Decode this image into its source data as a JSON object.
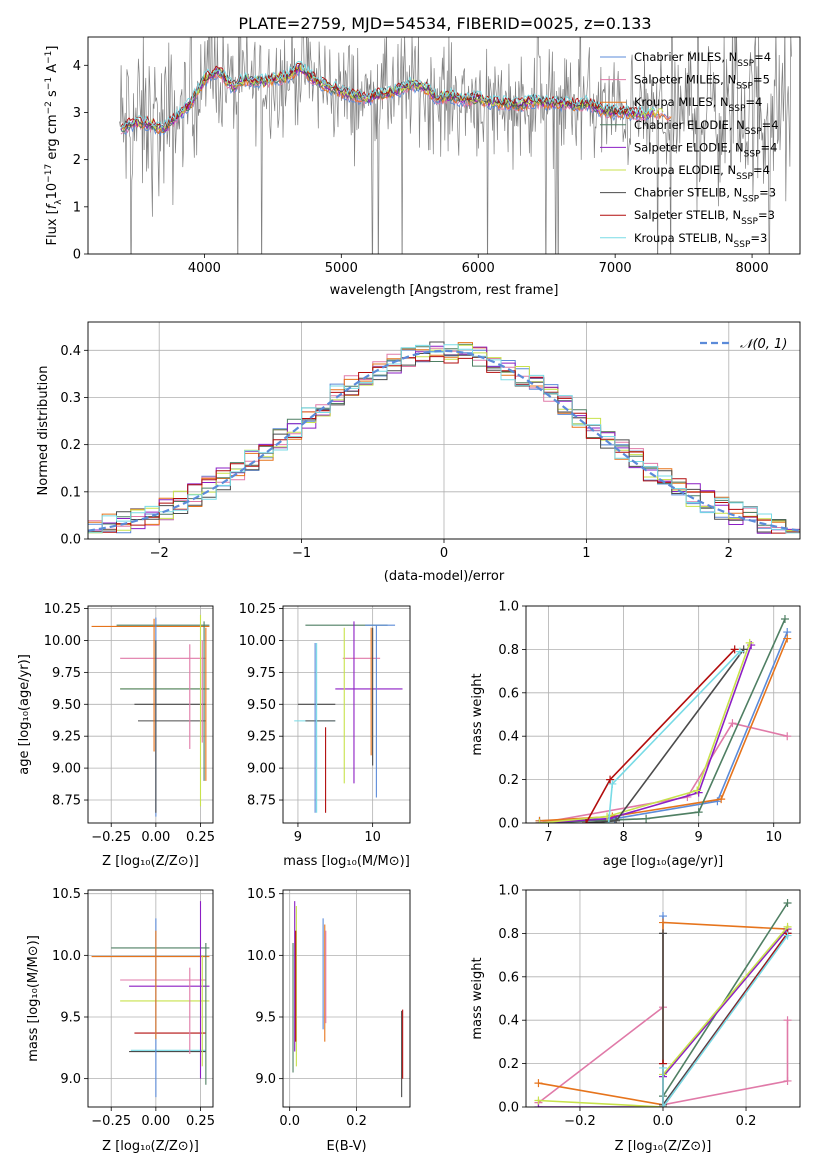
{
  "figure": {
    "title": "PLATE=2759, MJD=54534, FIBERID=0025, z=0.133"
  },
  "colors": {
    "Chabrier MILES": "#5b8bd9",
    "Salpeter MILES": "#e07aa8",
    "Kroupa MILES": "#e6741c",
    "Chabrier ELODIE": "#4f7f63",
    "Salpeter ELODIE": "#8c1fc4",
    "Kroupa ELODIE": "#c8e24c",
    "Chabrier STELIB": "#4b4b4b",
    "Salpeter STELIB": "#b20d0d",
    "Kroupa STELIB": "#78dbe6",
    "observed": "#808080"
  },
  "legend": [
    "Chabrier MILES, N_SSP=4",
    "Salpeter MILES, N_SSP=5",
    "Kroupa MILES, N_SSP=4",
    "Chabrier ELODIE, N_SSP=4",
    "Salpeter ELODIE, N_SSP=4",
    "Kroupa ELODIE, N_SSP=4",
    "Chabrier STELIB, N_SSP=3",
    "Salpeter STELIB, N_SSP=3",
    "Kroupa STELIB, N_SSP=3"
  ],
  "chart_data": [
    {
      "type": "line",
      "id": "spectrum",
      "xlabel": "wavelength [Angstrom, rest frame]",
      "ylabel": "Flux [f_λ 10^-17 erg cm^-2 s^-1 A^-1]",
      "xlim": [
        3150,
        8350
      ],
      "ylim": [
        0,
        4.6
      ],
      "xticks": [
        4000,
        5000,
        6000,
        7000,
        8000
      ],
      "yticks": [
        0,
        1,
        2,
        3,
        4
      ],
      "continuum": {
        "x": [
          3380,
          3500,
          3600,
          3700,
          3800,
          3900,
          4000,
          4100,
          4200,
          4300,
          4400,
          4500,
          4600,
          4700,
          4800,
          4900,
          5000,
          5100,
          5200,
          5300,
          5400,
          5500,
          5600,
          5700,
          5800,
          5900,
          6000,
          6100,
          6200,
          6300,
          6400,
          6500,
          6600,
          6700,
          6800,
          6900,
          7000,
          7100,
          7200,
          7300,
          7400
        ],
        "y": [
          2.65,
          2.8,
          2.75,
          2.65,
          2.9,
          3.2,
          3.7,
          3.9,
          3.55,
          3.7,
          3.65,
          3.7,
          3.75,
          3.95,
          3.7,
          3.55,
          3.45,
          3.35,
          3.3,
          3.4,
          3.45,
          3.6,
          3.55,
          3.3,
          3.35,
          3.25,
          3.3,
          3.2,
          3.2,
          3.15,
          3.25,
          3.2,
          3.2,
          3.15,
          3.2,
          3.05,
          3.0,
          3.0,
          2.95,
          3.0,
          2.95
        ]
      }
    },
    {
      "type": "step",
      "id": "residuals",
      "xlabel": "(data-model)/error",
      "ylabel": "Normed distribution",
      "xlim": [
        -2.5,
        2.5
      ],
      "ylim": [
        0,
        0.46
      ],
      "xticks": [
        -2,
        -1,
        0,
        1,
        2
      ],
      "yticks": [
        0.0,
        0.1,
        0.2,
        0.3,
        0.4
      ],
      "legend": "N(0,1)",
      "bin_width": 0.1,
      "bin_start": -2.5
    },
    {
      "type": "errorbar",
      "id": "age_vs_Z",
      "xlabel": "Z [log10(Z/Z_sun)]",
      "ylabel": "age [log10(age/yr)]",
      "xlim": [
        -0.38,
        0.32
      ],
      "ylim": [
        8.57,
        10.27
      ],
      "xticks": [
        -0.25,
        0.0,
        0.25
      ],
      "yticks": [
        8.75,
        9.0,
        9.25,
        9.5,
        9.75,
        10.0,
        10.25
      ]
    },
    {
      "type": "errorbar",
      "id": "age_vs_mass",
      "xlabel": "mass [log10(M/M_sun)]",
      "xlim": [
        8.8,
        10.5
      ],
      "ylim": [
        8.57,
        10.27
      ],
      "xticks": [
        9,
        10
      ],
      "yticks": [
        8.75,
        9.0,
        9.25,
        9.5,
        9.75,
        10.0,
        10.25
      ]
    },
    {
      "type": "line",
      "id": "weight_vs_age",
      "xlabel": "age [log10(age/yr)]",
      "ylabel": "mass weight",
      "xlim": [
        6.7,
        10.35
      ],
      "ylim": [
        0,
        1.0
      ],
      "xticks": [
        7,
        8,
        9,
        10
      ],
      "yticks": [
        0.0,
        0.2,
        0.4,
        0.6,
        0.8,
        1.0
      ],
      "series": [
        {
          "key": "Chabrier MILES",
          "x": [
            6.88,
            7.88,
            9.25,
            10.18
          ],
          "y": [
            0.01,
            0.02,
            0.1,
            0.88
          ]
        },
        {
          "key": "Salpeter MILES",
          "x": [
            6.88,
            8.85,
            9.45,
            10.18
          ],
          "y": [
            0.0,
            0.12,
            0.46,
            0.4
          ]
        },
        {
          "key": "Kroupa MILES",
          "x": [
            6.88,
            7.85,
            9.3,
            10.18
          ],
          "y": [
            0.01,
            0.03,
            0.11,
            0.85
          ]
        },
        {
          "key": "Chabrier ELODIE",
          "x": [
            6.88,
            8.3,
            9.0,
            10.15
          ],
          "y": [
            0.0,
            0.02,
            0.05,
            0.94
          ]
        },
        {
          "key": "Salpeter ELODIE",
          "x": [
            6.88,
            7.8,
            9.0,
            9.7
          ],
          "y": [
            0.0,
            0.02,
            0.14,
            0.82
          ]
        },
        {
          "key": "Kroupa ELODIE",
          "x": [
            6.88,
            7.78,
            8.98,
            9.68
          ],
          "y": [
            0.0,
            0.03,
            0.15,
            0.83
          ]
        },
        {
          "key": "Chabrier STELIB",
          "x": [
            7.5,
            7.9,
            9.6
          ],
          "y": [
            0.0,
            0.01,
            0.8
          ]
        },
        {
          "key": "Salpeter STELIB",
          "x": [
            7.5,
            7.82,
            9.48
          ],
          "y": [
            0.0,
            0.2,
            0.8
          ]
        },
        {
          "key": "Kroupa STELIB",
          "x": [
            7.8,
            7.85,
            9.55
          ],
          "y": [
            0.0,
            0.18,
            0.79
          ]
        }
      ]
    },
    {
      "type": "errorbar",
      "id": "mass_vs_Z",
      "xlabel": "Z [log10(Z/Z_sun)]",
      "ylabel": "mass [log10(M/M_sun)]",
      "xlim": [
        -0.38,
        0.32
      ],
      "ylim": [
        8.77,
        10.53
      ],
      "xticks": [
        -0.25,
        0.0,
        0.25
      ],
      "yticks": [
        9.0,
        9.5,
        10.0,
        10.5
      ]
    },
    {
      "type": "errorbar",
      "id": "mass_vs_ebv",
      "xlabel": "E(B-V)",
      "xlim": [
        -0.02,
        0.36
      ],
      "ylim": [
        8.77,
        10.53
      ],
      "xticks": [
        0.0,
        0.2
      ],
      "yticks": [
        9.0,
        9.5,
        10.0,
        10.5
      ]
    },
    {
      "type": "line",
      "id": "weight_vs_Z",
      "xlabel": "Z [log10(Z/Z_sun)]",
      "ylabel": "mass weight",
      "xlim": [
        -0.33,
        0.33
      ],
      "ylim": [
        0,
        1.0
      ],
      "xticks": [
        -0.2,
        0.0,
        0.2
      ],
      "yticks": [
        0.0,
        0.2,
        0.4,
        0.6,
        0.8,
        1.0
      ],
      "series": [
        {
          "key": "Chabrier MILES",
          "x": [
            0.0,
            0.0,
            0.3
          ],
          "y": [
            0.88,
            0.01,
            0.8
          ]
        },
        {
          "key": "Salpeter MILES",
          "x": [
            -0.3,
            0.0,
            0.0,
            0.3,
            0.3
          ],
          "y": [
            0.02,
            0.46,
            0.01,
            0.12,
            0.4
          ]
        },
        {
          "key": "Kroupa MILES",
          "x": [
            -0.3,
            0.0,
            0.0,
            0.3
          ],
          "y": [
            0.11,
            0.01,
            0.85,
            0.82
          ]
        },
        {
          "key": "Chabrier ELODIE",
          "x": [
            0.0,
            0.0,
            0.3
          ],
          "y": [
            0.0,
            0.05,
            0.94
          ]
        },
        {
          "key": "Salpeter ELODIE",
          "x": [
            -0.3,
            0.0,
            0.0,
            0.3
          ],
          "y": [
            0.0,
            0.0,
            0.14,
            0.82
          ]
        },
        {
          "key": "Kroupa ELODIE",
          "x": [
            -0.3,
            0.0,
            0.0,
            0.3
          ],
          "y": [
            0.03,
            0.0,
            0.15,
            0.83
          ]
        },
        {
          "key": "Chabrier STELIB",
          "x": [
            0.0,
            0.0,
            0.3
          ],
          "y": [
            0.8,
            0.01,
            0.8
          ]
        },
        {
          "key": "Salpeter STELIB",
          "x": [
            0.0,
            0.0,
            0.3
          ],
          "y": [
            0.2,
            0.0,
            0.8
          ]
        },
        {
          "key": "Kroupa STELIB",
          "x": [
            0.0,
            0.0,
            0.3
          ],
          "y": [
            0.18,
            0.0,
            0.79
          ]
        }
      ]
    }
  ]
}
